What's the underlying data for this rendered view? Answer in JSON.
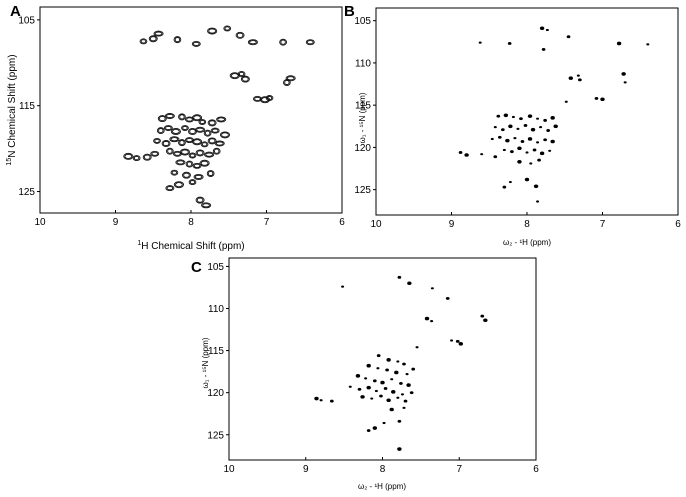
{
  "figure": {
    "panels": [
      "A",
      "B",
      "C"
    ]
  },
  "chart_data": [
    {
      "panel": "A",
      "type": "scatter",
      "style": "contour",
      "title": "",
      "xlabel_sup": "1",
      "xlabel": "H Chemical Shift (ppm)",
      "ylabel_sup": "15",
      "ylabel": "N Chemical Shift  (ppm)",
      "xlim": [
        10,
        6
      ],
      "ylim": [
        103.5,
        127.5
      ],
      "xticks": [
        10,
        9,
        8,
        7,
        6
      ],
      "yticks": [
        105,
        115,
        125
      ],
      "grid": false,
      "points": [
        [
          8.63,
          107.5
        ],
        [
          8.5,
          107.2
        ],
        [
          8.43,
          106.6
        ],
        [
          8.18,
          107.3
        ],
        [
          7.93,
          107.8
        ],
        [
          7.72,
          106.3
        ],
        [
          7.52,
          106.0
        ],
        [
          7.35,
          106.8
        ],
        [
          7.18,
          107.6
        ],
        [
          6.78,
          107.6
        ],
        [
          6.42,
          107.6
        ],
        [
          7.42,
          111.5
        ],
        [
          7.33,
          111.3
        ],
        [
          7.28,
          111.9
        ],
        [
          6.68,
          111.8
        ],
        [
          6.73,
          112.3
        ],
        [
          7.12,
          114.2
        ],
        [
          7.02,
          114.3
        ],
        [
          6.96,
          114.1
        ],
        [
          8.38,
          116.5
        ],
        [
          8.28,
          116.2
        ],
        [
          8.12,
          116.3
        ],
        [
          8.02,
          116.6
        ],
        [
          7.92,
          116.4
        ],
        [
          7.85,
          116.9
        ],
        [
          7.72,
          117.0
        ],
        [
          7.6,
          116.6
        ],
        [
          8.4,
          117.9
        ],
        [
          8.3,
          117.6
        ],
        [
          8.2,
          118.0
        ],
        [
          8.08,
          117.6
        ],
        [
          7.98,
          118.0
        ],
        [
          7.88,
          117.8
        ],
        [
          7.78,
          118.2
        ],
        [
          7.68,
          117.9
        ],
        [
          7.55,
          118.4
        ],
        [
          8.45,
          119.1
        ],
        [
          8.33,
          119.4
        ],
        [
          8.22,
          118.9
        ],
        [
          8.12,
          119.3
        ],
        [
          8.02,
          119.0
        ],
        [
          7.92,
          119.2
        ],
        [
          7.82,
          119.5
        ],
        [
          7.72,
          119.1
        ],
        [
          7.62,
          119.4
        ],
        [
          8.28,
          120.3
        ],
        [
          8.18,
          120.6
        ],
        [
          8.08,
          120.4
        ],
        [
          7.98,
          120.8
        ],
        [
          7.88,
          120.5
        ],
        [
          7.76,
          120.7
        ],
        [
          7.66,
          120.3
        ],
        [
          8.48,
          120.6
        ],
        [
          8.83,
          120.9
        ],
        [
          8.72,
          121.1
        ],
        [
          8.58,
          121.0
        ],
        [
          8.14,
          121.6
        ],
        [
          8.02,
          121.8
        ],
        [
          7.92,
          122.0
        ],
        [
          7.82,
          121.7
        ],
        [
          8.22,
          122.8
        ],
        [
          8.06,
          123.1
        ],
        [
          7.9,
          123.3
        ],
        [
          7.74,
          122.9
        ],
        [
          8.28,
          124.6
        ],
        [
          8.16,
          124.2
        ],
        [
          7.98,
          123.9
        ],
        [
          7.88,
          126.0
        ],
        [
          7.8,
          126.6
        ]
      ]
    },
    {
      "panel": "B",
      "type": "scatter",
      "style": "dots",
      "title": "",
      "xlabel": "ω₂ - ¹H (ppm)",
      "ylabel": "ω₁ - ¹⁵N (ppm)",
      "xlim": [
        10,
        6
      ],
      "ylim": [
        103.5,
        128
      ],
      "xticks": [
        10,
        9,
        8,
        7,
        6
      ],
      "yticks": [
        105,
        110,
        115,
        120,
        125
      ],
      "grid": false,
      "points": [
        [
          8.62,
          107.6
        ],
        [
          8.23,
          107.7
        ],
        [
          7.8,
          105.9
        ],
        [
          7.73,
          106.1
        ],
        [
          7.45,
          106.9
        ],
        [
          6.78,
          107.7
        ],
        [
          6.4,
          107.8
        ],
        [
          7.78,
          108.4
        ],
        [
          7.42,
          111.8
        ],
        [
          7.32,
          111.5
        ],
        [
          7.3,
          112.0
        ],
        [
          6.72,
          111.3
        ],
        [
          6.7,
          112.3
        ],
        [
          7.08,
          114.2
        ],
        [
          7.0,
          114.3
        ],
        [
          7.48,
          114.6
        ],
        [
          8.38,
          116.3
        ],
        [
          8.28,
          116.2
        ],
        [
          8.18,
          116.4
        ],
        [
          8.08,
          116.6
        ],
        [
          7.96,
          116.3
        ],
        [
          7.86,
          116.6
        ],
        [
          7.76,
          116.8
        ],
        [
          7.66,
          116.5
        ],
        [
          8.42,
          117.6
        ],
        [
          8.32,
          117.9
        ],
        [
          8.22,
          117.5
        ],
        [
          8.12,
          117.8
        ],
        [
          8.02,
          117.4
        ],
        [
          7.92,
          117.9
        ],
        [
          7.82,
          117.6
        ],
        [
          7.72,
          118.0
        ],
        [
          7.62,
          117.5
        ],
        [
          8.46,
          119.0
        ],
        [
          8.36,
          118.8
        ],
        [
          8.26,
          119.2
        ],
        [
          8.16,
          118.9
        ],
        [
          8.06,
          119.3
        ],
        [
          7.96,
          119.0
        ],
        [
          7.86,
          119.4
        ],
        [
          7.76,
          119.1
        ],
        [
          7.66,
          119.3
        ],
        [
          8.3,
          120.3
        ],
        [
          8.2,
          120.5
        ],
        [
          8.1,
          120.1
        ],
        [
          8.0,
          120.6
        ],
        [
          7.9,
          120.3
        ],
        [
          7.8,
          120.7
        ],
        [
          7.7,
          120.4
        ],
        [
          8.88,
          120.6
        ],
        [
          8.8,
          120.9
        ],
        [
          8.6,
          120.8
        ],
        [
          8.42,
          121.1
        ],
        [
          8.1,
          121.7
        ],
        [
          7.95,
          121.9
        ],
        [
          7.84,
          121.5
        ],
        [
          8.0,
          123.8
        ],
        [
          8.22,
          124.1
        ],
        [
          8.3,
          124.7
        ],
        [
          7.88,
          124.6
        ],
        [
          7.86,
          126.4
        ]
      ]
    },
    {
      "panel": "C",
      "type": "scatter",
      "style": "dots",
      "title": "",
      "xlabel": "ω₂ - ¹H (ppm)",
      "ylabel": "ω₁ - ¹⁵N (ppm)",
      "xlim": [
        10,
        6
      ],
      "ylim": [
        104,
        128
      ],
      "xticks": [
        10,
        9,
        8,
        7,
        6
      ],
      "yticks": [
        105,
        110,
        115,
        120,
        125
      ],
      "grid": false,
      "points": [
        [
          8.52,
          107.4
        ],
        [
          7.78,
          106.3
        ],
        [
          7.65,
          107.0
        ],
        [
          7.35,
          107.6
        ],
        [
          7.15,
          108.8
        ],
        [
          7.42,
          111.2
        ],
        [
          7.36,
          111.5
        ],
        [
          6.7,
          110.9
        ],
        [
          6.66,
          111.4
        ],
        [
          7.1,
          113.8
        ],
        [
          7.02,
          113.9
        ],
        [
          6.98,
          114.2
        ],
        [
          7.55,
          114.6
        ],
        [
          8.05,
          115.6
        ],
        [
          7.92,
          116.1
        ],
        [
          7.8,
          116.3
        ],
        [
          7.72,
          116.6
        ],
        [
          8.18,
          116.8
        ],
        [
          8.06,
          117.1
        ],
        [
          7.94,
          117.3
        ],
        [
          7.82,
          117.6
        ],
        [
          7.68,
          117.8
        ],
        [
          7.6,
          117.2
        ],
        [
          8.32,
          118.0
        ],
        [
          8.22,
          118.3
        ],
        [
          8.1,
          118.6
        ],
        [
          8.0,
          118.8
        ],
        [
          7.88,
          118.4
        ],
        [
          7.76,
          118.9
        ],
        [
          7.66,
          119.1
        ],
        [
          8.42,
          119.3
        ],
        [
          8.3,
          119.6
        ],
        [
          8.18,
          119.4
        ],
        [
          8.08,
          119.8
        ],
        [
          7.96,
          119.5
        ],
        [
          7.86,
          119.9
        ],
        [
          7.74,
          120.2
        ],
        [
          7.62,
          120.0
        ],
        [
          8.26,
          120.5
        ],
        [
          8.14,
          120.7
        ],
        [
          8.02,
          120.4
        ],
        [
          7.92,
          120.9
        ],
        [
          7.8,
          120.6
        ],
        [
          7.7,
          121.0
        ],
        [
          8.86,
          120.7
        ],
        [
          8.8,
          120.9
        ],
        [
          8.66,
          121.0
        ],
        [
          7.88,
          122.0
        ],
        [
          7.72,
          121.8
        ],
        [
          8.18,
          124.5
        ],
        [
          8.1,
          124.2
        ],
        [
          7.98,
          123.6
        ],
        [
          7.78,
          123.4
        ],
        [
          7.78,
          126.7
        ]
      ]
    }
  ]
}
